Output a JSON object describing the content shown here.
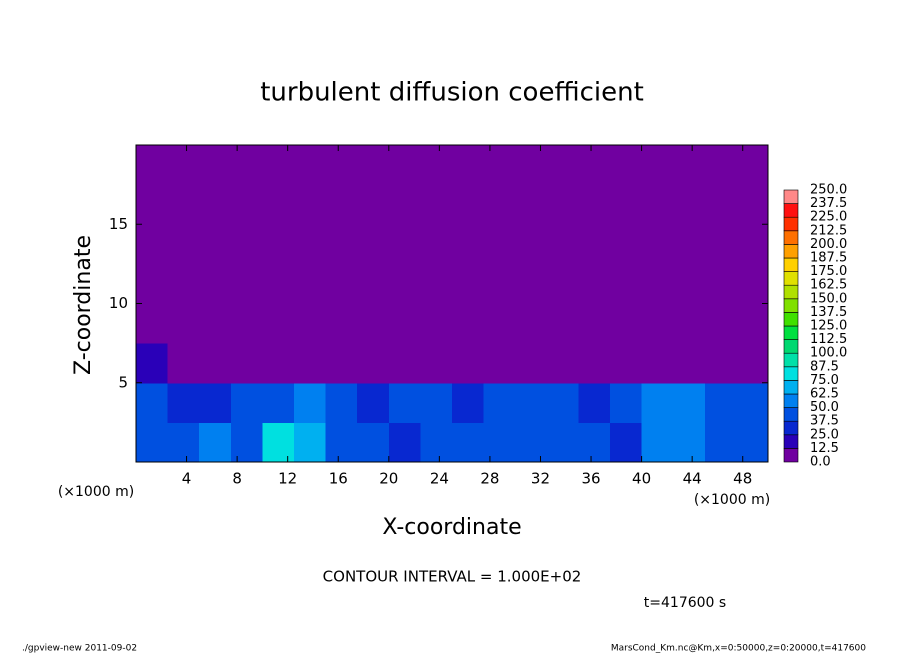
{
  "chart_data": {
    "type": "heatmap",
    "title": "turbulent diffusion coefficient",
    "x_label": "X-coordinate",
    "y_label": "Z-coordinate",
    "x_unit": "(×1000 m)",
    "y_unit": "(×1000 m)",
    "contour_note": "CONTOUR INTERVAL = 1.000E+02",
    "time_note": "t=417600 s",
    "footer_left": "./gpview-new  2011-09-02",
    "footer_right": "MarsCond_Km.nc@Km,x=0:50000,z=0:20000,t=417600",
    "xlim": [
      0,
      50
    ],
    "ylim": [
      0,
      20
    ],
    "xticks": [
      4,
      8,
      12,
      16,
      20,
      24,
      28,
      32,
      36,
      40,
      44,
      48
    ],
    "yticks": [
      5,
      10,
      15
    ],
    "x": [
      1.25,
      3.75,
      6.25,
      8.75,
      11.25,
      13.75,
      16.25,
      18.75,
      21.25,
      23.75,
      26.25,
      28.75,
      31.25,
      33.75,
      36.25,
      38.75,
      41.25,
      43.75,
      46.25,
      48.75
    ],
    "y": [
      1.25,
      3.75,
      6.25,
      8.75,
      11.25,
      13.75,
      16.25,
      18.75
    ],
    "z": [
      [
        45,
        40,
        50,
        40,
        75,
        70,
        45,
        40,
        35,
        45,
        40,
        40,
        45,
        40,
        40,
        35,
        55,
        60,
        40,
        45
      ],
      [
        40,
        35,
        35,
        45,
        40,
        55,
        40,
        35,
        45,
        45,
        35,
        45,
        40,
        40,
        35,
        40,
        55,
        50,
        45,
        40
      ],
      [
        15,
        5,
        5,
        5,
        5,
        5,
        5,
        5,
        5,
        5,
        5,
        5,
        5,
        5,
        5,
        5,
        5,
        5,
        5,
        5
      ],
      [
        5,
        5,
        5,
        5,
        5,
        5,
        5,
        5,
        5,
        5,
        5,
        5,
        5,
        5,
        5,
        5,
        5,
        5,
        5,
        5
      ],
      [
        5,
        5,
        5,
        5,
        5,
        5,
        5,
        5,
        5,
        5,
        5,
        5,
        5,
        5,
        5,
        5,
        5,
        5,
        5,
        5
      ],
      [
        5,
        5,
        5,
        5,
        5,
        5,
        5,
        5,
        5,
        5,
        5,
        5,
        5,
        5,
        5,
        5,
        5,
        5,
        5,
        5
      ],
      [
        5,
        5,
        5,
        5,
        5,
        5,
        5,
        5,
        5,
        5,
        5,
        5,
        5,
        5,
        5,
        5,
        5,
        5,
        5,
        5
      ],
      [
        5,
        5,
        5,
        5,
        5,
        5,
        5,
        5,
        5,
        5,
        5,
        5,
        5,
        5,
        5,
        5,
        5,
        5,
        5,
        5
      ]
    ],
    "colorbar": {
      "levels": [
        {
          "value": 0,
          "label": "0.0"
        },
        {
          "value": 12.5,
          "label": "12.5"
        },
        {
          "value": 25,
          "label": "25.0"
        },
        {
          "value": 37.5,
          "label": "37.5"
        },
        {
          "value": 50,
          "label": "50.0"
        },
        {
          "value": 62.5,
          "label": "62.5"
        },
        {
          "value": 75,
          "label": "75.0"
        },
        {
          "value": 87.5,
          "label": "87.5"
        },
        {
          "value": 100,
          "label": "100.0"
        },
        {
          "value": 112.5,
          "label": "112.5"
        },
        {
          "value": 125,
          "label": "125.0"
        },
        {
          "value": 137.5,
          "label": "137.5"
        },
        {
          "value": 150,
          "label": "150.0"
        },
        {
          "value": 162.5,
          "label": "162.5"
        },
        {
          "value": 175,
          "label": "175.0"
        },
        {
          "value": 187.5,
          "label": "187.5"
        },
        {
          "value": 200,
          "label": "200.0"
        },
        {
          "value": 212.5,
          "label": "212.5"
        },
        {
          "value": 225,
          "label": "225.0"
        },
        {
          "value": 237.5,
          "label": "237.5"
        },
        {
          "value": 250,
          "label": "250.0"
        }
      ],
      "colors": [
        "#7000a0",
        "#2a00b8",
        "#0828d0",
        "#0050e0",
        "#0080f0",
        "#00b0f0",
        "#00e0e0",
        "#00e0a8",
        "#00d870",
        "#00e040",
        "#40e000",
        "#80e000",
        "#b0e000",
        "#e0e000",
        "#ffd000",
        "#ffa000",
        "#ff7000",
        "#ff3000",
        "#ff1010",
        "#ff8888"
      ]
    }
  }
}
